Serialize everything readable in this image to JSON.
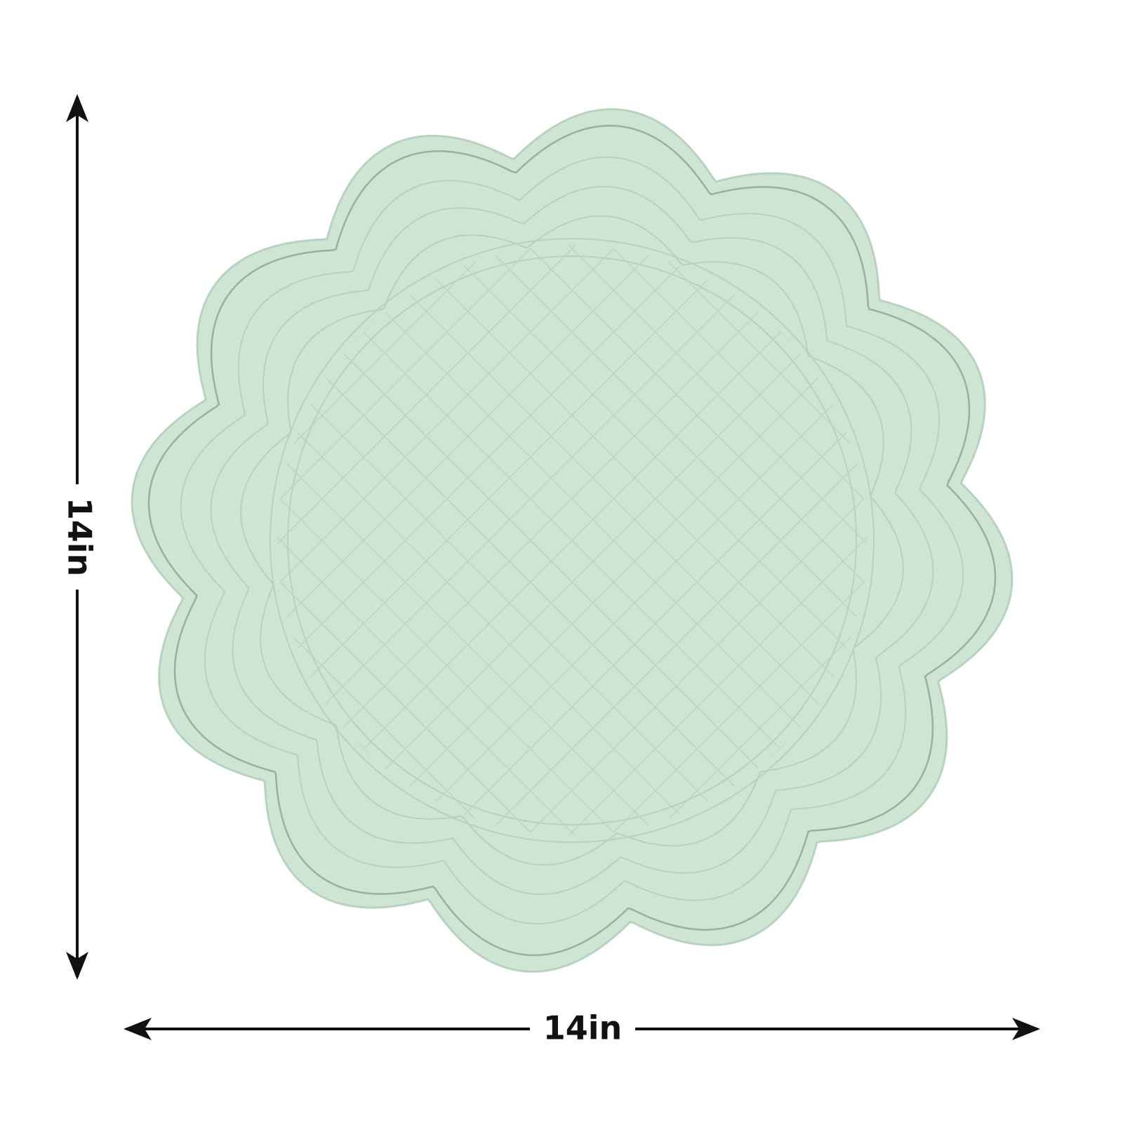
{
  "dimensions": {
    "height": "14in",
    "width": "14in"
  }
}
